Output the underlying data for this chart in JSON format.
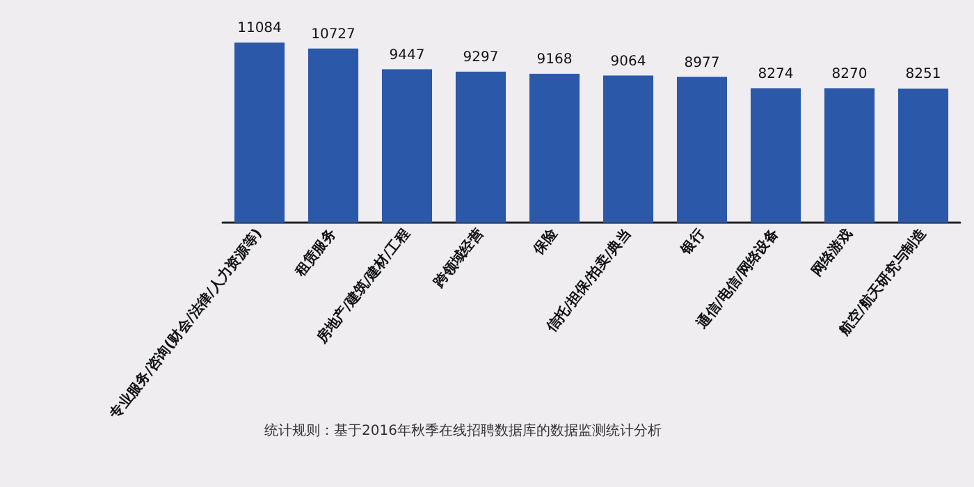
{
  "chart_data": {
    "type": "bar",
    "categories": [
      "专业服务/咨询(财会/法律/人力资源等)",
      "租赁服务",
      "房地产/建筑/建材/工程",
      "跨领域经营",
      "保险",
      "信托/担保/拍卖/典当",
      "银行",
      "通信/电信/网络设备",
      "网络游戏",
      "航空/航天研究与制造"
    ],
    "values": [
      11084,
      10727,
      9447,
      9297,
      9168,
      9064,
      8977,
      8274,
      8270,
      8251
    ],
    "color": "#2b58a8",
    "data_labels": true,
    "annotations": [
      "统计规则：基于2016年秋季在线招聘数据库的数据监测统计分析"
    ]
  }
}
